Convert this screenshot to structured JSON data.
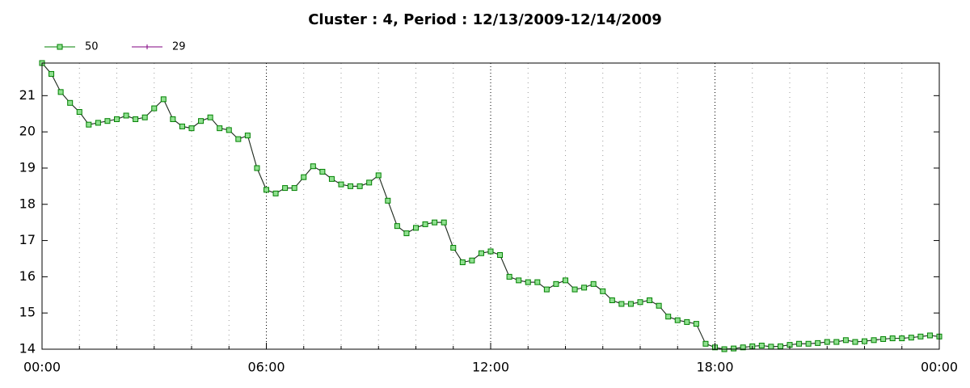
{
  "chart_data": {
    "type": "line",
    "title": "Cluster : 4, Period : 12/13/2009-12/14/2009",
    "x": [
      0,
      0.25,
      0.5,
      0.75,
      1,
      1.25,
      1.5,
      1.75,
      2,
      2.25,
      2.5,
      2.75,
      3,
      3.25,
      3.5,
      3.75,
      4,
      4.25,
      4.5,
      4.75,
      5,
      5.25,
      5.5,
      5.75,
      6,
      6.25,
      6.5,
      6.75,
      7,
      7.25,
      7.5,
      7.75,
      8,
      8.25,
      8.5,
      8.75,
      9,
      9.25,
      9.5,
      9.75,
      10,
      10.25,
      10.5,
      10.75,
      11,
      11.25,
      11.5,
      11.75,
      12,
      12.25,
      12.5,
      12.75,
      13,
      13.25,
      13.5,
      13.75,
      14,
      14.25,
      14.5,
      14.75,
      15,
      15.25,
      15.5,
      15.75,
      16,
      16.25,
      16.5,
      16.75,
      17,
      17.25,
      17.5,
      17.75,
      18,
      18.25,
      18.5,
      18.75,
      19,
      19.25,
      19.5,
      19.75,
      20,
      20.25,
      20.5,
      20.75,
      21,
      21.25,
      21.5,
      21.75,
      22,
      22.25,
      22.5,
      22.75,
      23,
      23.25,
      23.5,
      23.75,
      24
    ],
    "series": [
      {
        "name": "29",
        "color": "#800080",
        "marker": "plus",
        "values": [
          21.9,
          21.6,
          21.1,
          20.8,
          20.55,
          20.2,
          20.25,
          20.3,
          20.35,
          20.45,
          20.35,
          20.4,
          20.65,
          20.9,
          20.35,
          20.15,
          20.1,
          20.3,
          20.4,
          20.1,
          20.05,
          19.8,
          19.9,
          19.0,
          18.4,
          18.3,
          18.45,
          18.45,
          18.75,
          19.05,
          18.9,
          18.7,
          18.55,
          18.5,
          18.5,
          18.6,
          18.8,
          18.1,
          17.4,
          17.2,
          17.35,
          17.45,
          17.5,
          17.5,
          16.8,
          16.4,
          16.45,
          16.65,
          16.7,
          16.6,
          16.0,
          15.9,
          15.85,
          15.85,
          15.65,
          15.8,
          15.9,
          15.65,
          15.7,
          15.8,
          15.6,
          15.35,
          15.25,
          15.25,
          15.3,
          15.35,
          15.2,
          14.9,
          14.8,
          14.75,
          14.7,
          14.15,
          14.05,
          14.0,
          14.02,
          14.05,
          14.08,
          14.1,
          14.07,
          14.08,
          14.12,
          14.15,
          14.15,
          14.17,
          14.2,
          14.2,
          14.25,
          14.2,
          14.22,
          14.25,
          14.28,
          14.3,
          14.3,
          14.32,
          14.35,
          14.38,
          14.35
        ]
      },
      {
        "name": "50",
        "color": "#008000",
        "marker": "square",
        "values": [
          21.9,
          21.6,
          21.1,
          20.8,
          20.55,
          20.2,
          20.25,
          20.3,
          20.35,
          20.45,
          20.35,
          20.4,
          20.65,
          20.9,
          20.35,
          20.15,
          20.1,
          20.3,
          20.4,
          20.1,
          20.05,
          19.8,
          19.9,
          19.0,
          18.4,
          18.3,
          18.45,
          18.45,
          18.75,
          19.05,
          18.9,
          18.7,
          18.55,
          18.5,
          18.5,
          18.6,
          18.8,
          18.1,
          17.4,
          17.2,
          17.35,
          17.45,
          17.5,
          17.5,
          16.8,
          16.4,
          16.45,
          16.65,
          16.7,
          16.6,
          16.0,
          15.9,
          15.85,
          15.85,
          15.65,
          15.8,
          15.9,
          15.65,
          15.7,
          15.8,
          15.6,
          15.35,
          15.25,
          15.25,
          15.3,
          15.35,
          15.2,
          14.9,
          14.8,
          14.75,
          14.7,
          14.15,
          14.05,
          14.0,
          14.02,
          14.05,
          14.08,
          14.1,
          14.07,
          14.08,
          14.12,
          14.15,
          14.15,
          14.17,
          14.2,
          14.2,
          14.25,
          14.2,
          14.22,
          14.25,
          14.28,
          14.3,
          14.3,
          14.32,
          14.35,
          14.38,
          14.35
        ]
      }
    ],
    "legend_order": [
      1,
      0
    ],
    "xlim": [
      0,
      24
    ],
    "xticks": [
      {
        "value": 0,
        "label": "00:00"
      },
      {
        "value": 6,
        "label": "06:00"
      },
      {
        "value": 12,
        "label": "12:00"
      },
      {
        "value": 18,
        "label": "18:00"
      },
      {
        "value": 24,
        "label": "00:00"
      }
    ],
    "xminorticks": [
      1,
      2,
      3,
      4,
      5,
      7,
      8,
      9,
      10,
      11,
      13,
      14,
      15,
      16,
      17,
      19,
      20,
      21,
      22,
      23
    ],
    "ylim": [
      14,
      21.9
    ],
    "yticks": [
      14,
      15,
      16,
      17,
      18,
      19,
      20,
      21
    ],
    "grid": true
  }
}
